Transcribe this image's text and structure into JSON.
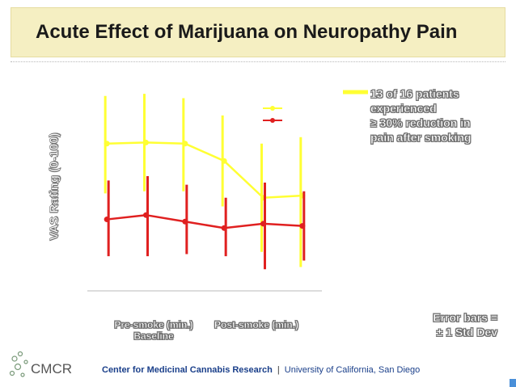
{
  "title": "Acute Effect of Marijuana on Neuropathy Pain",
  "chart_data": {
    "type": "line",
    "title": "",
    "ylabel": "VAS Rating (0-100)",
    "x": [
      1,
      2,
      3,
      4,
      5,
      6
    ],
    "x_tick_labels": [
      "Pre-smoke (min.)\nBaseline",
      "Post-smoke (min.)"
    ],
    "ylim": [
      0,
      100
    ],
    "grid": false,
    "legend": "top-right",
    "series": [
      {
        "color": "#ffff33",
        "values": [
          68,
          68.5,
          68,
          60,
          43,
          44
        ],
        "errors": [
          [
            45,
            90
          ],
          [
            46,
            91
          ],
          [
            46,
            89
          ],
          [
            39,
            81
          ],
          [
            18,
            68
          ],
          [
            11,
            71
          ]
        ]
      },
      {
        "color": "#e02020",
        "values": [
          33,
          35,
          32,
          29,
          31,
          30
        ],
        "errors": [
          [
            16,
            51
          ],
          [
            16,
            53
          ],
          [
            17,
            49
          ],
          [
            16,
            43
          ],
          [
            10,
            50
          ],
          [
            14,
            46
          ]
        ]
      }
    ],
    "annotation": [
      "13 of 16 patients",
      "experienced",
      "≥ 30% reduction in",
      "pain after smoking"
    ],
    "error_note": [
      "Error bars =",
      "± 1 Std Dev"
    ]
  },
  "footer": {
    "org": "Center for Medicinal Cannabis Research",
    "separator": "|",
    "university": "University of California, San Diego"
  },
  "logo": {
    "text": "CMCR"
  }
}
